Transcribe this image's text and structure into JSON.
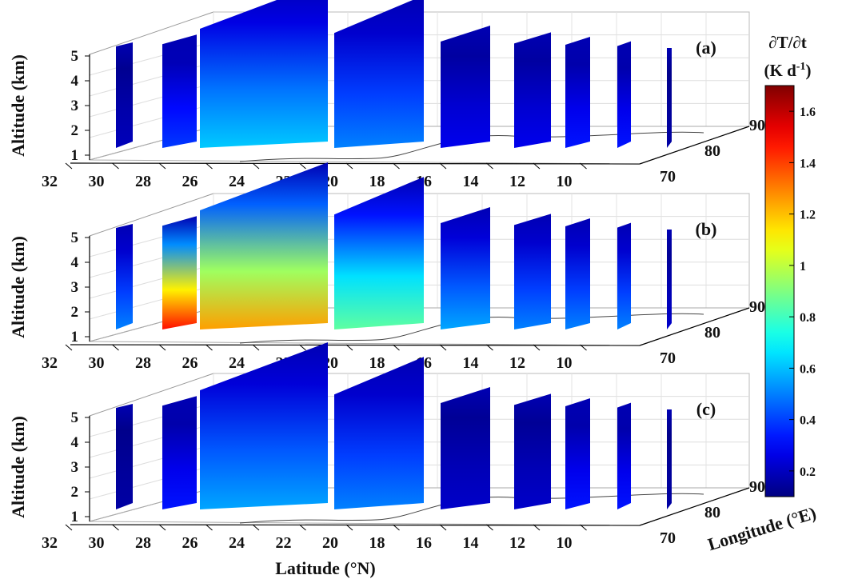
{
  "chart_data": [
    {
      "panel": "(a)",
      "type": "heatmap",
      "xlabel": "",
      "ylabel": "Longitude (°E)",
      "zlabel": "Altitude (km)",
      "x_ticks": [
        "32",
        "30",
        "28",
        "26",
        "24",
        "22",
        "20",
        "18",
        "16",
        "14",
        "12",
        "10"
      ],
      "y_ticks": [
        "70",
        "80",
        "90"
      ],
      "z_ticks": [
        "1",
        "2",
        "3",
        "4",
        "5"
      ],
      "intensity_by_slice": [
        0.18,
        0.35,
        0.55,
        0.45,
        0.25,
        0.25,
        0.3,
        0.3,
        0.15
      ]
    },
    {
      "panel": "(b)",
      "type": "heatmap",
      "xlabel": "",
      "ylabel": "Longitude (°E)",
      "zlabel": "Altitude (km)",
      "x_ticks": [
        "32",
        "30",
        "28",
        "26",
        "24",
        "22",
        "20",
        "18",
        "16",
        "14",
        "12",
        "10"
      ],
      "y_ticks": [
        "70",
        "80",
        "90"
      ],
      "z_ticks": [
        "1",
        "2",
        "3",
        "4",
        "5"
      ],
      "intensity_by_slice": [
        0.45,
        1.3,
        1.1,
        0.75,
        0.5,
        0.45,
        0.45,
        0.45,
        0.2
      ]
    },
    {
      "panel": "(c)",
      "type": "heatmap",
      "xlabel": "Latitude (°N)",
      "ylabel": "Longitude (°E)",
      "zlabel": "Altitude (km)",
      "x_ticks": [
        "32",
        "30",
        "28",
        "26",
        "24",
        "22",
        "20",
        "18",
        "16",
        "14",
        "12",
        "10"
      ],
      "y_ticks": [
        "70",
        "80",
        "90"
      ],
      "z_ticks": [
        "1",
        "2",
        "3",
        "4",
        "5"
      ],
      "intensity_by_slice": [
        0.15,
        0.3,
        0.5,
        0.45,
        0.2,
        0.2,
        0.3,
        0.3,
        0.15
      ]
    }
  ],
  "colorbar": {
    "title_line1": "∂T/∂t",
    "title_line2_base": "(K d",
    "title_line2_sup": "-1",
    "title_line2_end": ")",
    "ticks": [
      "1.6",
      "1.4",
      "1.2",
      "1",
      "0.8",
      "0.6",
      "0.4",
      "0.2"
    ],
    "tick_values": [
      1.6,
      1.4,
      1.2,
      1.0,
      0.8,
      0.6,
      0.4,
      0.2
    ],
    "range": [
      0.1,
      1.7
    ],
    "colormap": "jet"
  },
  "labels": {
    "ylabel": "Altitude (km)",
    "xlabel": "Latitude (°N)",
    "lonlabel": "Longitude (°E)"
  }
}
